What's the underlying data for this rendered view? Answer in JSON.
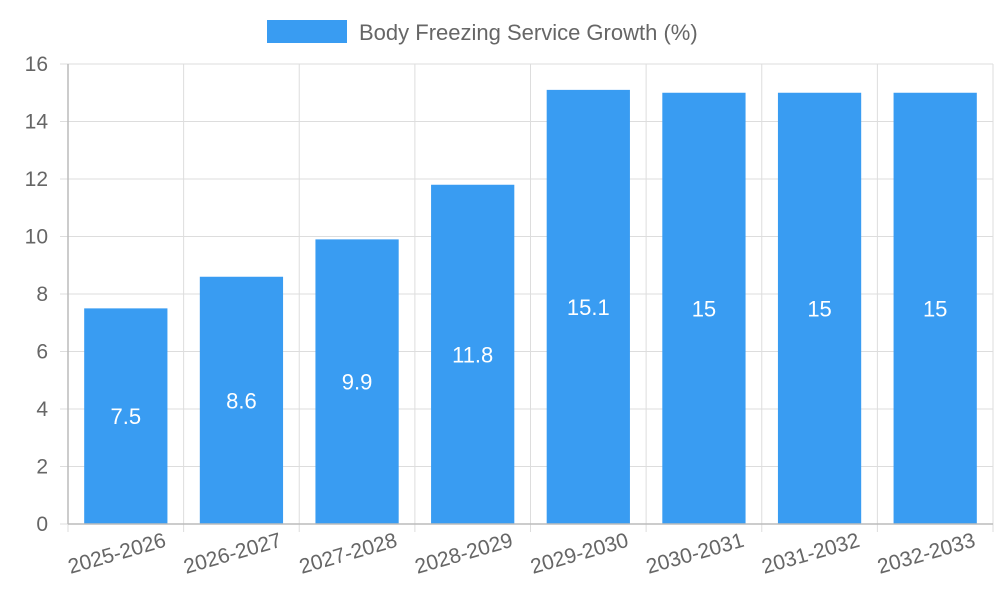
{
  "chart_data": {
    "type": "bar",
    "categories": [
      "2025-2026",
      "2026-2027",
      "2027-2028",
      "2028-2029",
      "2029-2030",
      "2030-2031",
      "2031-2032",
      "2032-2033"
    ],
    "series": [
      {
        "name": "Body Freezing Service Growth (%)",
        "values": [
          7.5,
          8.6,
          9.9,
          11.8,
          15.1,
          15,
          15,
          15
        ],
        "data_labels": [
          "7.5",
          "8.6",
          "9.9",
          "11.8",
          "15.1",
          "15",
          "15",
          "15"
        ]
      }
    ],
    "y_ticks": [
      "0",
      "2",
      "4",
      "6",
      "8",
      "10",
      "12",
      "14",
      "16"
    ],
    "ylim": [
      0,
      16
    ],
    "grid": true,
    "legend_position": "top-center",
    "bar_color": "#399cf2"
  }
}
